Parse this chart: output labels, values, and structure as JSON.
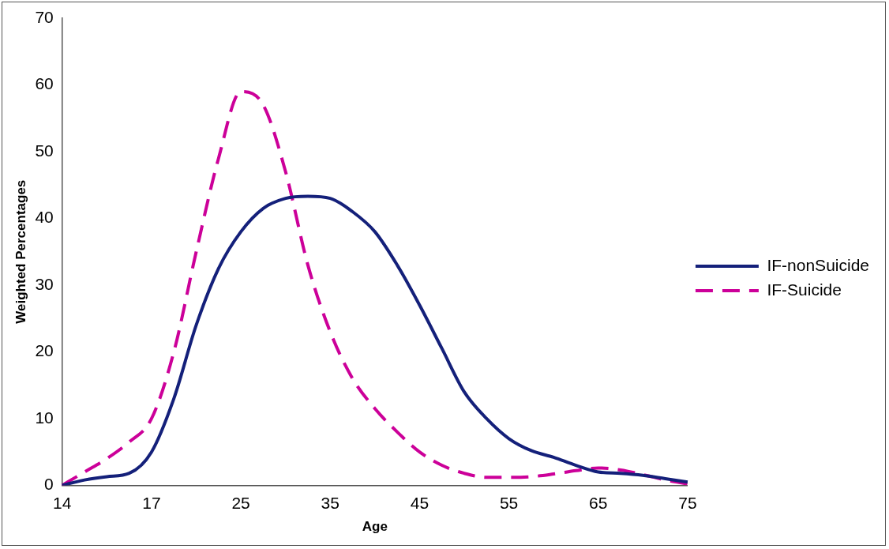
{
  "chart_data": {
    "type": "line",
    "xlabel": "Age",
    "ylabel": "Weighted Percentages",
    "categories": [
      "14",
      null,
      null,
      null,
      "17",
      null,
      null,
      null,
      "25",
      null,
      null,
      null,
      "35",
      null,
      null,
      null,
      "45",
      null,
      null,
      null,
      "55",
      null,
      null,
      null,
      "65",
      null,
      null,
      null,
      "75"
    ],
    "series": [
      {
        "name": "IF-nonSuicide",
        "color": "#14207a",
        "line_style": "solid",
        "values": [
          0,
          0.8,
          1.3,
          1.8,
          5,
          13,
          24,
          32.5,
          38,
          41.5,
          43,
          43.3,
          43,
          41,
          38,
          33,
          27,
          20.5,
          14,
          10,
          7,
          5.2,
          4.2,
          3,
          2,
          1.8,
          1.5,
          1,
          0.5
        ]
      },
      {
        "name": "IF-Suicide",
        "color": "#cc0099",
        "line_style": "dashed",
        "values": [
          0,
          2,
          4,
          6.5,
          10,
          20,
          35,
          49,
          59,
          57,
          47,
          33,
          23,
          16,
          11.5,
          8,
          5,
          3,
          1.8,
          1.2,
          1.2,
          1.3,
          1.7,
          2.2,
          2.6,
          2.3,
          1.6,
          0.8,
          0.2
        ]
      }
    ],
    "ylim": [
      0,
      70
    ],
    "yticks": [
      0,
      10,
      20,
      30,
      40,
      50,
      60,
      70
    ],
    "grid": false,
    "legend": "right",
    "marker": "none"
  }
}
